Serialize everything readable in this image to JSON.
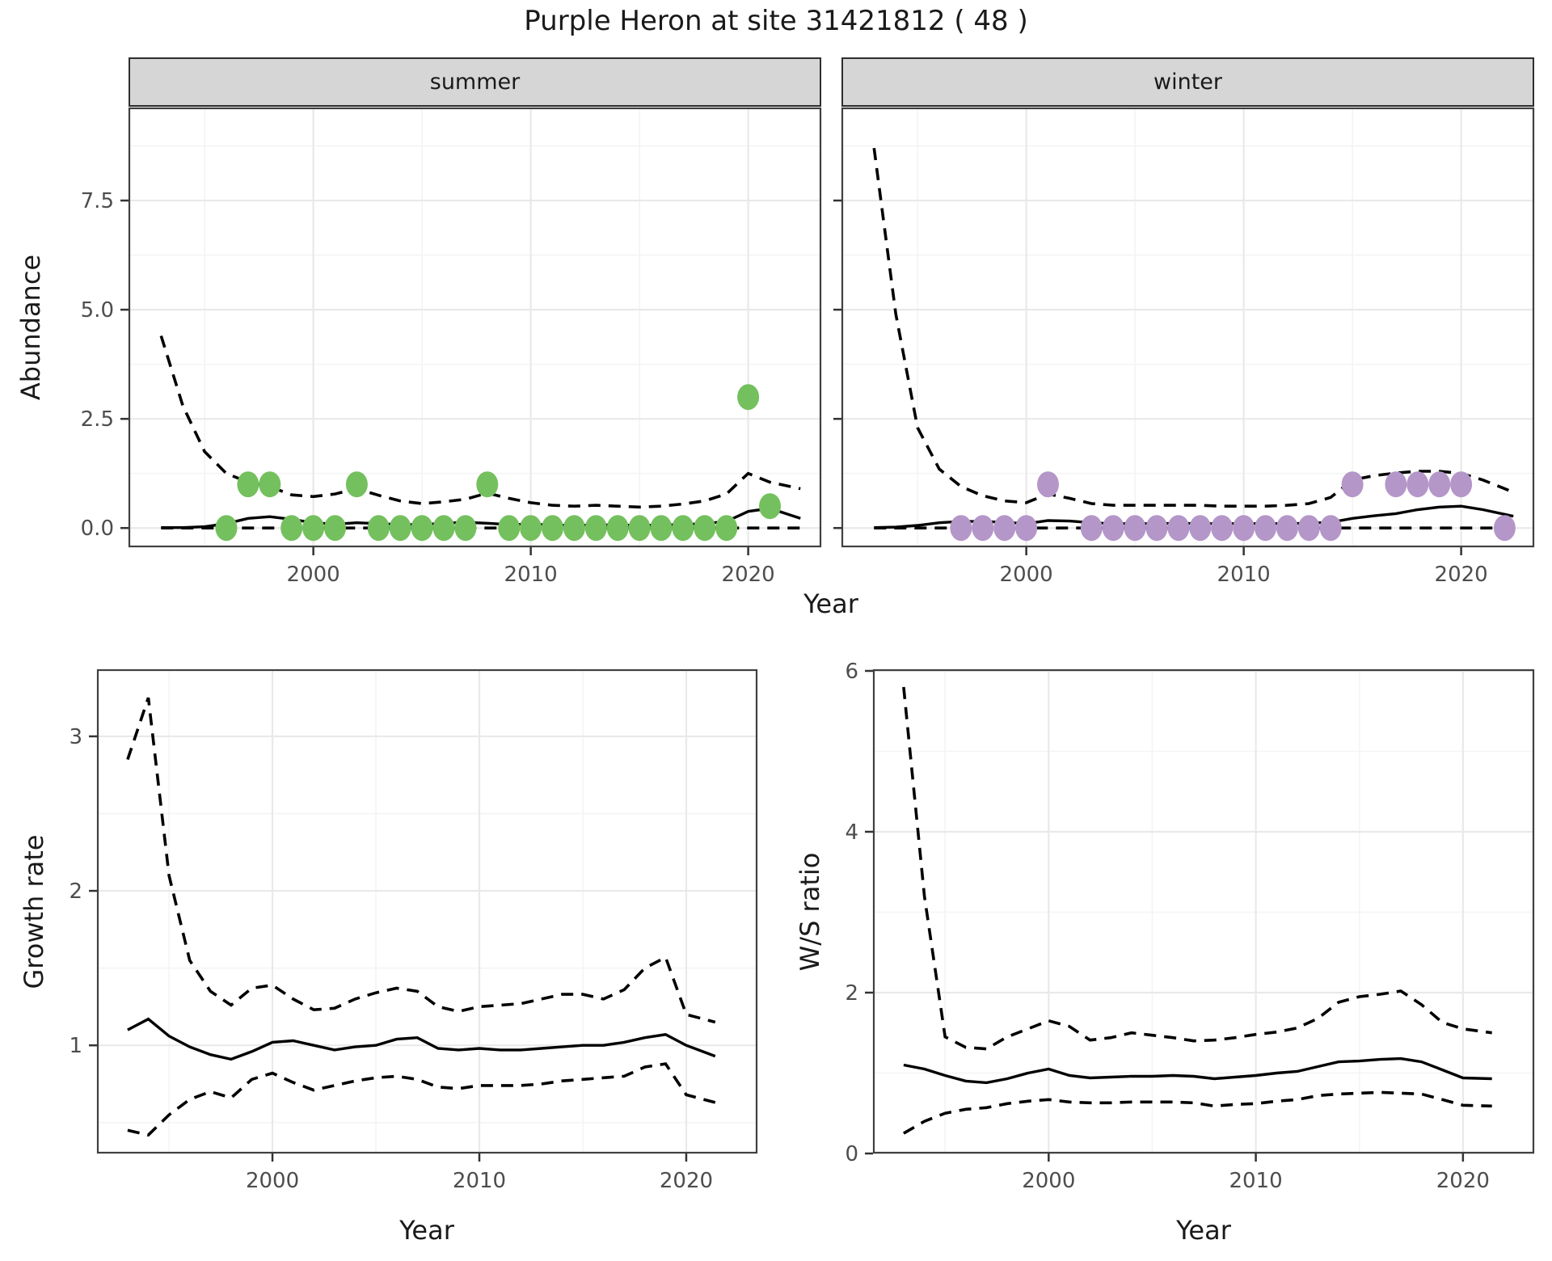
{
  "title": "Purple Heron at site 31421812 ( 48 )",
  "top_figure": {
    "y_axis_title": "Abundance",
    "x_axis_title": "Year"
  },
  "bottom_left": {
    "y_axis_title": "Growth rate",
    "x_axis_title": "Year"
  },
  "bottom_right": {
    "y_axis_title": "W/S ratio",
    "x_axis_title": "Year"
  },
  "colors": {
    "summer_points": "#74c05e",
    "winter_points": "#b496c8",
    "line": "#000000",
    "strip_background": "#d6d6d6",
    "grid_major": "#e9e9e9",
    "grid_minor": "#f4f4f4",
    "panel_border": "#404040"
  },
  "chart_data": [
    {
      "id": "summer",
      "type": "line",
      "facet_label": "summer",
      "xlabel": "Year",
      "ylabel": "Abundance",
      "xlim": [
        1991.5,
        2023.36
      ],
      "ylim": [
        -0.44,
        9.63
      ],
      "x_ticks": [
        2000,
        2010,
        2020
      ],
      "x_tick_labels": [
        "2000",
        "2010",
        "2020"
      ],
      "x_minor": [
        1995,
        2005,
        2015
      ],
      "y_ticks": [
        0,
        2.5,
        5,
        7.5
      ],
      "y_tick_labels": [
        "0.0",
        "2.5",
        "5.0",
        "7.5"
      ],
      "y_minor": [
        1.25,
        3.75,
        6.25,
        8.75
      ],
      "series": [
        {
          "name": "upper_95ci",
          "style": "dashed",
          "x": [
            1993,
            1994,
            1995,
            1996,
            1997,
            1998,
            1999,
            2000,
            2001,
            2002,
            2003,
            2004,
            2005,
            2006,
            2007,
            2008,
            2009,
            2010,
            2011,
            2012,
            2013,
            2014,
            2015,
            2016,
            2017,
            2018,
            2019,
            2020,
            2021,
            2022.4
          ],
          "y": [
            4.4,
            2.8,
            1.75,
            1.25,
            1.05,
            0.95,
            0.76,
            0.72,
            0.78,
            0.9,
            0.75,
            0.62,
            0.56,
            0.6,
            0.66,
            0.8,
            0.68,
            0.58,
            0.52,
            0.5,
            0.52,
            0.5,
            0.48,
            0.5,
            0.55,
            0.62,
            0.78,
            1.25,
            1.05,
            0.9
          ]
        },
        {
          "name": "median",
          "style": "solid",
          "x": [
            1993,
            1994,
            1995,
            1996,
            1997,
            1998,
            1999,
            2000,
            2001,
            2002,
            2003,
            2004,
            2005,
            2006,
            2007,
            2008,
            2009,
            2010,
            2011,
            2012,
            2013,
            2014,
            2015,
            2016,
            2017,
            2018,
            2019,
            2020,
            2021,
            2022.4
          ],
          "y": [
            0.01,
            0.01,
            0.03,
            0.1,
            0.22,
            0.26,
            0.2,
            0.12,
            0.09,
            0.12,
            0.1,
            0.08,
            0.08,
            0.11,
            0.13,
            0.11,
            0.08,
            0.09,
            0.07,
            0.06,
            0.07,
            0.07,
            0.06,
            0.07,
            0.08,
            0.1,
            0.15,
            0.38,
            0.45,
            0.22
          ]
        },
        {
          "name": "lower_95ci",
          "style": "dashed",
          "x": [
            1993,
            1994,
            1995,
            1996,
            1997,
            1998,
            1999,
            2000,
            2001,
            2002,
            2003,
            2004,
            2005,
            2006,
            2007,
            2008,
            2009,
            2010,
            2011,
            2012,
            2013,
            2014,
            2015,
            2016,
            2017,
            2018,
            2019,
            2020,
            2021,
            2022.4
          ],
          "y": [
            0,
            0,
            0,
            0,
            0,
            0,
            0,
            0,
            0,
            0,
            0,
            0,
            0,
            0,
            0,
            0,
            0,
            0,
            0,
            0,
            0,
            0,
            0,
            0,
            0,
            0,
            0,
            0,
            0,
            0
          ]
        }
      ],
      "points": {
        "name": "observed-counts-summer",
        "color": "#74c05e",
        "x": [
          1996,
          1997,
          1998,
          1999,
          2000,
          2001,
          2002,
          2003,
          2004,
          2005,
          2006,
          2007,
          2008,
          2009,
          2010,
          2011,
          2012,
          2013,
          2014,
          2015,
          2016,
          2017,
          2018,
          2019,
          2020,
          2021
        ],
        "y": [
          0,
          1,
          1,
          0,
          0,
          0,
          1,
          0,
          0,
          0,
          0,
          0,
          1,
          0,
          0,
          0,
          0,
          0,
          0,
          0,
          0,
          0,
          0,
          0,
          3,
          0.5
        ]
      }
    },
    {
      "id": "winter",
      "type": "line",
      "facet_label": "winter",
      "xlabel": "Year",
      "ylabel": "Abundance",
      "xlim": [
        1991.5,
        2023.36
      ],
      "ylim": [
        -0.44,
        9.63
      ],
      "x_ticks": [
        2000,
        2010,
        2020
      ],
      "x_tick_labels": [
        "2000",
        "2010",
        "2020"
      ],
      "x_minor": [
        1995,
        2005,
        2015
      ],
      "y_ticks": [
        0,
        2.5,
        5,
        7.5
      ],
      "y_tick_labels": [
        "0.0",
        "2.5",
        "5.0",
        "7.5"
      ],
      "y_minor": [
        1.25,
        3.75,
        6.25,
        8.75
      ],
      "hide_y_labels": true,
      "series": [
        {
          "name": "upper_95ci",
          "style": "dashed",
          "x": [
            1993,
            1994,
            1995,
            1996,
            1997,
            1998,
            1999,
            2000,
            2001,
            2002,
            2003,
            2004,
            2005,
            2006,
            2007,
            2008,
            2009,
            2010,
            2011,
            2012,
            2013,
            2014,
            2015,
            2016,
            2017,
            2018,
            2019,
            2020,
            2021,
            2022.4
          ],
          "y": [
            8.7,
            4.9,
            2.3,
            1.35,
            0.95,
            0.74,
            0.62,
            0.58,
            0.78,
            0.68,
            0.56,
            0.52,
            0.52,
            0.52,
            0.52,
            0.52,
            0.5,
            0.5,
            0.5,
            0.52,
            0.56,
            0.7,
            1.1,
            1.2,
            1.26,
            1.3,
            1.3,
            1.25,
            1.1,
            0.82
          ]
        },
        {
          "name": "median",
          "style": "solid",
          "x": [
            1993,
            1994,
            1995,
            1996,
            1997,
            1998,
            1999,
            2000,
            2001,
            2002,
            2003,
            2004,
            2005,
            2006,
            2007,
            2008,
            2009,
            2010,
            2011,
            2012,
            2013,
            2014,
            2015,
            2016,
            2017,
            2018,
            2019,
            2020,
            2021,
            2022.4
          ],
          "y": [
            0.01,
            0.02,
            0.06,
            0.12,
            0.15,
            0.15,
            0.13,
            0.1,
            0.17,
            0.16,
            0.12,
            0.1,
            0.1,
            0.1,
            0.11,
            0.1,
            0.1,
            0.1,
            0.1,
            0.1,
            0.11,
            0.13,
            0.22,
            0.28,
            0.33,
            0.42,
            0.48,
            0.5,
            0.42,
            0.27
          ]
        },
        {
          "name": "lower_95ci",
          "style": "dashed",
          "x": [
            1993,
            1994,
            1995,
            1996,
            1997,
            1998,
            1999,
            2000,
            2001,
            2002,
            2003,
            2004,
            2005,
            2006,
            2007,
            2008,
            2009,
            2010,
            2011,
            2012,
            2013,
            2014,
            2015,
            2016,
            2017,
            2018,
            2019,
            2020,
            2021,
            2022.4
          ],
          "y": [
            0,
            0,
            0,
            0,
            0,
            0,
            0,
            0,
            0,
            0,
            0,
            0,
            0,
            0,
            0,
            0,
            0,
            0,
            0,
            0,
            0,
            0,
            0,
            0,
            0,
            0,
            0,
            0,
            0,
            0
          ]
        }
      ],
      "points": {
        "name": "observed-counts-winter",
        "color": "#b496c8",
        "x": [
          1997,
          1998,
          1999,
          2000,
          2001,
          2003,
          2004,
          2005,
          2006,
          2007,
          2008,
          2009,
          2010,
          2011,
          2012,
          2013,
          2014,
          2015,
          2017,
          2018,
          2019,
          2020,
          2022
        ],
        "y": [
          0,
          0,
          0,
          0,
          1,
          0,
          0,
          0,
          0,
          0,
          0,
          0,
          0,
          0,
          0,
          0,
          0,
          1,
          1,
          1,
          1,
          1,
          0
        ]
      }
    },
    {
      "id": "growth",
      "type": "line",
      "facet_label": "",
      "xlabel": "Year",
      "ylabel": "Growth rate",
      "xlim": [
        1991.52,
        2023.44
      ],
      "ylim": [
        0.3,
        3.434
      ],
      "x_ticks": [
        2000,
        2010,
        2020
      ],
      "x_tick_labels": [
        "2000",
        "2010",
        "2020"
      ],
      "x_minor": [
        1995,
        2005,
        2015
      ],
      "y_ticks": [
        1,
        2,
        3
      ],
      "y_tick_labels": [
        "1",
        "2",
        "3"
      ],
      "y_minor": [
        0.5,
        1.5,
        2.5
      ],
      "series": [
        {
          "name": "upper_95ci",
          "style": "dashed",
          "x": [
            1993,
            1994,
            1995,
            1996,
            1997,
            1998,
            1999,
            2000,
            2001,
            2002,
            2003,
            2004,
            2005,
            2006,
            2007,
            2008,
            2009,
            2010,
            2011,
            2012,
            2013,
            2014,
            2015,
            2016,
            2017,
            2018,
            2019,
            2020,
            2021.4
          ],
          "y": [
            2.85,
            3.25,
            2.1,
            1.55,
            1.35,
            1.26,
            1.37,
            1.39,
            1.3,
            1.23,
            1.24,
            1.3,
            1.34,
            1.37,
            1.35,
            1.25,
            1.22,
            1.25,
            1.26,
            1.27,
            1.3,
            1.33,
            1.33,
            1.3,
            1.36,
            1.5,
            1.57,
            1.2,
            1.15
          ]
        },
        {
          "name": "median",
          "style": "solid",
          "x": [
            1993,
            1994,
            1995,
            1996,
            1997,
            1998,
            1999,
            2000,
            2001,
            2002,
            2003,
            2004,
            2005,
            2006,
            2007,
            2008,
            2009,
            2010,
            2011,
            2012,
            2013,
            2014,
            2015,
            2016,
            2017,
            2018,
            2019,
            2020,
            2021.4
          ],
          "y": [
            1.1,
            1.17,
            1.06,
            0.99,
            0.94,
            0.91,
            0.96,
            1.02,
            1.03,
            1.0,
            0.97,
            0.99,
            1.0,
            1.04,
            1.05,
            0.98,
            0.97,
            0.98,
            0.97,
            0.97,
            0.98,
            0.99,
            1.0,
            1.0,
            1.02,
            1.05,
            1.07,
            1.0,
            0.93
          ]
        },
        {
          "name": "lower_95ci",
          "style": "dashed",
          "x": [
            1993,
            1994,
            1995,
            1996,
            1997,
            1998,
            1999,
            2000,
            2001,
            2002,
            2003,
            2004,
            2005,
            2006,
            2007,
            2008,
            2009,
            2010,
            2011,
            2012,
            2013,
            2014,
            2015,
            2016,
            2017,
            2018,
            2019,
            2020,
            2021.4
          ],
          "y": [
            0.45,
            0.42,
            0.55,
            0.65,
            0.7,
            0.66,
            0.78,
            0.82,
            0.76,
            0.71,
            0.74,
            0.77,
            0.79,
            0.8,
            0.78,
            0.73,
            0.72,
            0.74,
            0.74,
            0.74,
            0.75,
            0.77,
            0.78,
            0.79,
            0.8,
            0.86,
            0.88,
            0.68,
            0.63
          ]
        }
      ]
    },
    {
      "id": "ws",
      "type": "line",
      "facet_label": "",
      "xlabel": "Year",
      "ylabel": "W/S ratio",
      "xlim": [
        1991.52,
        2023.44
      ],
      "ylim": [
        0,
        6.02
      ],
      "x_ticks": [
        2000,
        2010,
        2020
      ],
      "x_tick_labels": [
        "2000",
        "2010",
        "2020"
      ],
      "x_minor": [
        1995,
        2005,
        2015
      ],
      "y_ticks": [
        0,
        2,
        4,
        6
      ],
      "y_tick_labels": [
        "0",
        "2",
        "4",
        "6"
      ],
      "y_minor": [
        1,
        3,
        5
      ],
      "series": [
        {
          "name": "upper_95ci",
          "style": "dashed",
          "x": [
            1993,
            1994,
            1995,
            1996,
            1997,
            1998,
            1999,
            2000,
            2001,
            2002,
            2003,
            2004,
            2005,
            2006,
            2007,
            2008,
            2009,
            2010,
            2011,
            2012,
            2013,
            2014,
            2015,
            2016,
            2017,
            2018,
            2019,
            2020,
            2021.4
          ],
          "y": [
            5.8,
            3.2,
            1.45,
            1.32,
            1.3,
            1.45,
            1.55,
            1.65,
            1.58,
            1.41,
            1.44,
            1.5,
            1.47,
            1.44,
            1.4,
            1.41,
            1.44,
            1.48,
            1.51,
            1.56,
            1.68,
            1.88,
            1.95,
            1.98,
            2.02,
            1.85,
            1.63,
            1.55,
            1.5
          ]
        },
        {
          "name": "median",
          "style": "solid",
          "x": [
            1993,
            1994,
            1995,
            1996,
            1997,
            1998,
            1999,
            2000,
            2001,
            2002,
            2003,
            2004,
            2005,
            2006,
            2007,
            2008,
            2009,
            2010,
            2011,
            2012,
            2013,
            2014,
            2015,
            2016,
            2017,
            2018,
            2019,
            2020,
            2021.4
          ],
          "y": [
            1.1,
            1.05,
            0.97,
            0.9,
            0.88,
            0.93,
            1.0,
            1.05,
            0.97,
            0.94,
            0.95,
            0.96,
            0.96,
            0.97,
            0.96,
            0.93,
            0.95,
            0.97,
            1.0,
            1.02,
            1.08,
            1.14,
            1.15,
            1.17,
            1.18,
            1.14,
            1.04,
            0.94,
            0.93
          ]
        },
        {
          "name": "lower_95ci",
          "style": "dashed",
          "x": [
            1993,
            1994,
            1995,
            1996,
            1997,
            1998,
            1999,
            2000,
            2001,
            2002,
            2003,
            2004,
            2005,
            2006,
            2007,
            2008,
            2009,
            2010,
            2011,
            2012,
            2013,
            2014,
            2015,
            2016,
            2017,
            2018,
            2019,
            2020,
            2021.4
          ],
          "y": [
            0.25,
            0.4,
            0.5,
            0.55,
            0.57,
            0.62,
            0.65,
            0.67,
            0.64,
            0.63,
            0.63,
            0.64,
            0.64,
            0.64,
            0.63,
            0.59,
            0.61,
            0.62,
            0.65,
            0.67,
            0.72,
            0.74,
            0.75,
            0.76,
            0.75,
            0.74,
            0.67,
            0.6,
            0.59
          ]
        }
      ]
    }
  ]
}
